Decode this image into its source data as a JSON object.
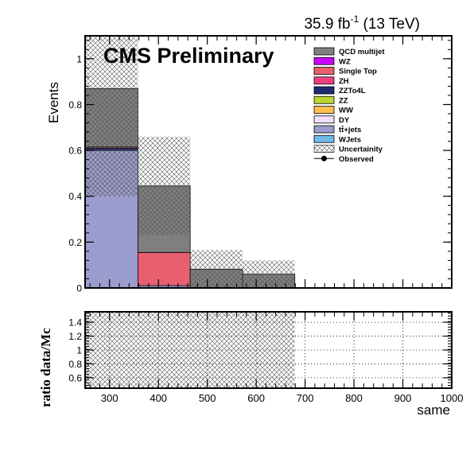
{
  "header": {
    "lumi_value": "35.9 fb",
    "lumi_exp": "-1",
    "lumi_energy": " (13 TeV)",
    "cms_label": "CMS Preliminary"
  },
  "legend": {
    "entries": [
      {
        "label": "QCD multijet",
        "color": "#7f7f7f",
        "kind": "box"
      },
      {
        "label": "WZ",
        "color": "#cc00ff",
        "kind": "box"
      },
      {
        "label": "Single Top",
        "color": "#e8606f",
        "kind": "box"
      },
      {
        "label": "ZH",
        "color": "#f2417f",
        "kind": "box"
      },
      {
        "label": "ZZTo4L",
        "color": "#1f2b6e",
        "kind": "box"
      },
      {
        "label": "ZZ",
        "color": "#bcd62e",
        "kind": "box"
      },
      {
        "label": "WW",
        "color": "#ffc04a",
        "kind": "box"
      },
      {
        "label": "DY",
        "color": "#f3e0ff",
        "kind": "box"
      },
      {
        "label": "tt̄+jets",
        "color": "#9c9cce",
        "kind": "box"
      },
      {
        "label": "WJets",
        "color": "#6fb8ea",
        "kind": "box"
      },
      {
        "label": "Uncertainity",
        "color": "#ffffff",
        "kind": "hatch"
      },
      {
        "label": "Observed",
        "color": "#000000",
        "kind": "marker"
      }
    ]
  },
  "chart_data": [
    {
      "type": "bar",
      "panel": "main",
      "ylabel": "Events",
      "xlim": [
        250,
        1000
      ],
      "ylim": [
        0,
        1.1
      ],
      "yticks": [
        0,
        0.2,
        0.4,
        0.6,
        0.8,
        1
      ],
      "ytick_labels": [
        "0",
        "0.2",
        "0.4",
        "0.6",
        "0.8",
        "1"
      ],
      "bins": [
        {
          "x_low": 250,
          "x_high": 358,
          "stack": [
            {
              "name": "tt̄+jets",
              "value": 0.6
            },
            {
              "name": "ZZTo4L",
              "value": 0.01
            },
            {
              "name": "Single Top",
              "value": 0.005
            },
            {
              "name": "QCD multijet",
              "value": 0.255
            }
          ],
          "unc_low": 0.4,
          "unc_high": 1.1
        },
        {
          "x_low": 358,
          "x_high": 465,
          "stack": [
            {
              "name": "tt̄+jets",
              "value": 0.01
            },
            {
              "name": "Single Top",
              "value": 0.145
            },
            {
              "name": "QCD multijet",
              "value": 0.29
            }
          ],
          "unc_low": 0.23,
          "unc_high": 0.66
        },
        {
          "x_low": 465,
          "x_high": 572,
          "stack": [
            {
              "name": "QCD multijet",
              "value": 0.082
            }
          ],
          "unc_low": 0.0,
          "unc_high": 0.165
        },
        {
          "x_low": 572,
          "x_high": 679,
          "stack": [
            {
              "name": "QCD multijet",
              "value": 0.06
            }
          ],
          "unc_low": 0.0,
          "unc_high": 0.12
        }
      ]
    },
    {
      "type": "bar",
      "panel": "ratio",
      "ylabel": "ratio data/Mc",
      "xlabel": "same",
      "xlim": [
        250,
        1000
      ],
      "ylim": [
        0.45,
        1.55
      ],
      "yticks": [
        0.6,
        0.8,
        1,
        1.2,
        1.4
      ],
      "ytick_labels": [
        "0.6",
        "0.8",
        "1",
        "1.2",
        "1.4"
      ],
      "xticks": [
        300,
        400,
        500,
        600,
        700,
        800,
        900,
        1000
      ],
      "xtick_labels": [
        "300",
        "400",
        "500",
        "600",
        "700",
        "800",
        "900",
        "1000"
      ],
      "grid": true,
      "uncertainty_band": {
        "x_low": 250,
        "x_high": 679,
        "y_low": 0.45,
        "y_high": 1.55
      }
    }
  ]
}
